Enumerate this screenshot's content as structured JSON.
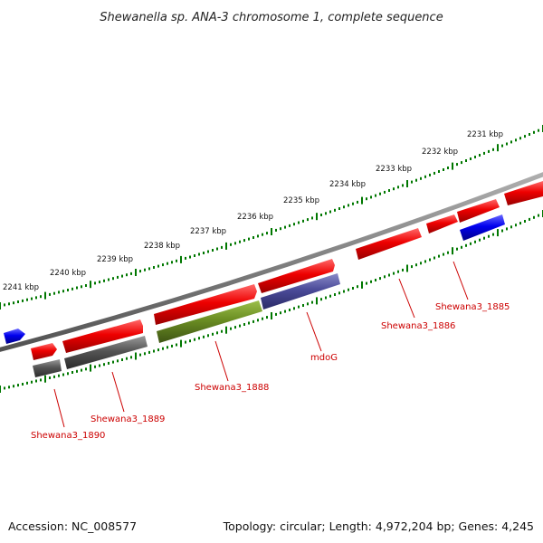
{
  "title": "Shewanella sp. ANA-3 chromosome 1, complete sequence",
  "accession": "Accession: NC_008577",
  "topology": "Topology: circular; Length: 4,972,204 bp; Genes: 4,245",
  "scale_labels": [
    "2241 kbp",
    "2240 kbp",
    "2239 kbp",
    "2238 kbp",
    "2237 kbp",
    "2236 kbp",
    "2235 kbp",
    "2234 kbp",
    "2233 kbp",
    "2232 kbp",
    "2231 kbp"
  ],
  "gene_labels": [
    "Shewana3_1890",
    "Shewana3_1889",
    "Shewana3_1888",
    "mdoG",
    "Shewana3_1886",
    "Shewana3_1885"
  ],
  "colors": {
    "red_gene": "#ee0000",
    "blue_gene": "#0000ee",
    "gray_gene": "#555555",
    "green_gene": "#6b8e23",
    "purple_gene": "#4b4b99",
    "tick": "#007700",
    "label": "#cc0000"
  }
}
